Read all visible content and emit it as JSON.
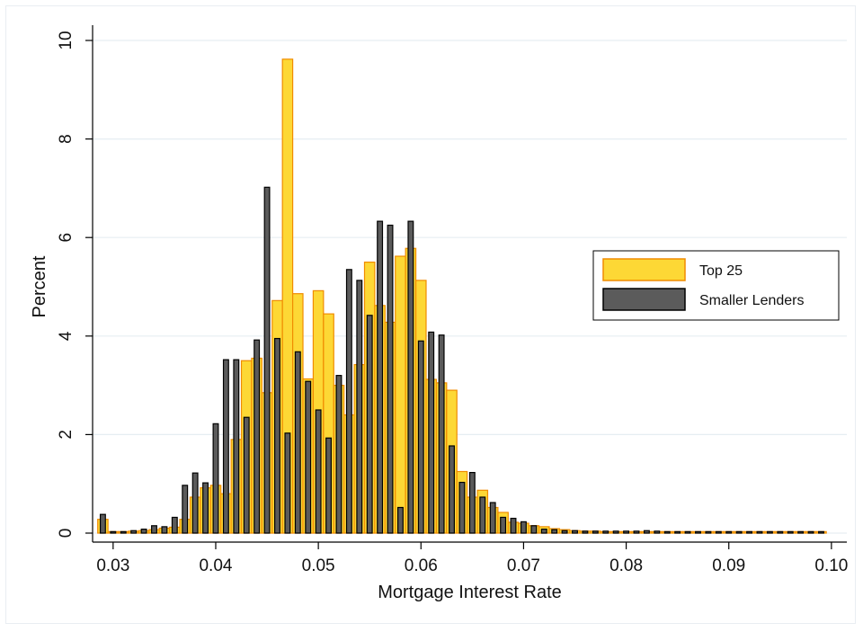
{
  "chart_data": {
    "type": "bar",
    "title": "",
    "xlabel": "Mortgage Interest Rate",
    "ylabel": "Percent",
    "xlim": [
      0.028,
      0.1015
    ],
    "ylim": [
      0,
      10.5
    ],
    "x_ticks": [
      0.03,
      0.04,
      0.05,
      0.06,
      0.07,
      0.08,
      0.09,
      0.1
    ],
    "x_tick_labels": [
      "0.03",
      "0.04",
      "0.05",
      "0.06",
      "0.07",
      "0.08",
      "0.09",
      "0.10"
    ],
    "y_ticks": [
      0,
      2,
      4,
      6,
      8,
      10
    ],
    "y_tick_labels": [
      "0",
      "2",
      "4",
      "6",
      "8",
      "10"
    ],
    "grid": true,
    "legend_position": "right",
    "bin_width": 0.001,
    "x": [
      0.029,
      0.03,
      0.031,
      0.032,
      0.033,
      0.034,
      0.035,
      0.036,
      0.037,
      0.038,
      0.039,
      0.04,
      0.041,
      0.042,
      0.043,
      0.044,
      0.045,
      0.046,
      0.047,
      0.048,
      0.049,
      0.05,
      0.051,
      0.052,
      0.053,
      0.054,
      0.055,
      0.056,
      0.057,
      0.058,
      0.059,
      0.06,
      0.061,
      0.062,
      0.063,
      0.064,
      0.065,
      0.066,
      0.067,
      0.068,
      0.069,
      0.07,
      0.071,
      0.072,
      0.073,
      0.074,
      0.075,
      0.076,
      0.077,
      0.078,
      0.079,
      0.08,
      0.081,
      0.082,
      0.083,
      0.084,
      0.085,
      0.086,
      0.087,
      0.088,
      0.089,
      0.09,
      0.091,
      0.092,
      0.093,
      0.094,
      0.095,
      0.096,
      0.097,
      0.098,
      0.099
    ],
    "series": [
      {
        "name": "Top 25",
        "color": "#fdd835",
        "edge_color": "#f08c00",
        "values": [
          0.28,
          0.03,
          0.03,
          0.04,
          0.05,
          0.07,
          0.1,
          0.12,
          0.28,
          0.73,
          0.92,
          0.97,
          0.8,
          1.9,
          3.5,
          3.55,
          2.85,
          4.72,
          9.62,
          4.86,
          3.13,
          4.92,
          4.45,
          3.0,
          2.4,
          3.42,
          5.5,
          4.62,
          4.28,
          5.62,
          5.78,
          5.13,
          3.12,
          3.05,
          2.9,
          1.25,
          0.73,
          0.87,
          0.52,
          0.42,
          0.22,
          0.2,
          0.15,
          0.13,
          0.09,
          0.07,
          0.05,
          0.04,
          0.04,
          0.03,
          0.03,
          0.03,
          0.03,
          0.03,
          0.03,
          0.03,
          0.03,
          0.03,
          0.03,
          0.03,
          0.03,
          0.03,
          0.03,
          0.03,
          0.03,
          0.03,
          0.03,
          0.03,
          0.03,
          0.03,
          0.03
        ]
      },
      {
        "name": "Smaller Lenders",
        "color": "#5b5b5b",
        "edge_color": "#000000",
        "values": [
          0.38,
          0.03,
          0.03,
          0.05,
          0.08,
          0.15,
          0.13,
          0.32,
          0.97,
          1.22,
          1.02,
          2.22,
          3.52,
          3.52,
          2.35,
          3.92,
          7.02,
          3.95,
          2.03,
          3.68,
          3.08,
          2.5,
          1.93,
          3.2,
          5.35,
          5.13,
          4.42,
          6.33,
          6.25,
          0.52,
          6.33,
          3.9,
          4.08,
          4.02,
          1.77,
          1.03,
          1.23,
          0.73,
          0.62,
          0.32,
          0.3,
          0.23,
          0.15,
          0.08,
          0.07,
          0.05,
          0.05,
          0.04,
          0.04,
          0.04,
          0.04,
          0.04,
          0.04,
          0.05,
          0.04,
          0.03,
          0.03,
          0.03,
          0.03,
          0.03,
          0.03,
          0.03,
          0.03,
          0.03,
          0.03,
          0.03,
          0.03,
          0.03,
          0.03,
          0.03,
          0.03
        ]
      }
    ]
  }
}
